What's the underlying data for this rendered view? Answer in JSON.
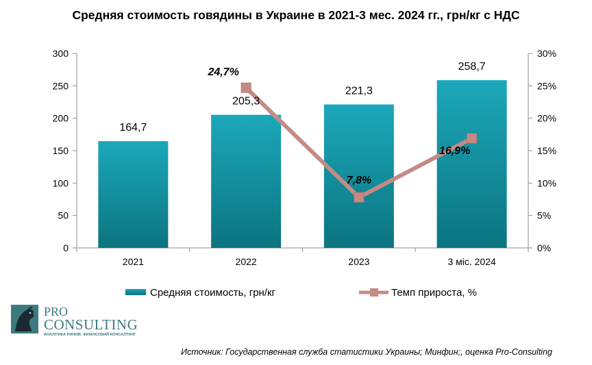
{
  "chart_data": {
    "type": "bar",
    "title": "Средняя стоимость говядины в Украине в 2021-3 мес. 2024 гг., грн/кг с НДС",
    "categories": [
      "2021",
      "2022",
      "2023",
      "3 міс. 2024"
    ],
    "series": [
      {
        "name": "Средняя стоимость, грн/кг",
        "type": "bar",
        "axis": "left",
        "color": "#1aa3b4",
        "values": [
          164.7,
          205.3,
          221.3,
          258.7
        ],
        "labels": [
          "164,7",
          "205,3",
          "221,3",
          "258,7"
        ]
      },
      {
        "name": "Темп прироста, %",
        "type": "line",
        "axis": "right",
        "color": "#c48b84",
        "values": [
          null,
          24.7,
          7.8,
          16.9
        ],
        "labels": [
          "",
          "24,7%",
          "7,8%",
          "16,9%"
        ]
      }
    ],
    "y_left": {
      "min": 0,
      "max": 300,
      "ticks": [
        0,
        50,
        100,
        150,
        200,
        250,
        300
      ],
      "tick_labels": [
        "0",
        "50",
        "100",
        "150",
        "200",
        "250",
        "300"
      ]
    },
    "y_right": {
      "min": 0,
      "max": 30,
      "ticks": [
        0,
        5,
        10,
        15,
        20,
        25,
        30
      ],
      "tick_labels": [
        "0%",
        "5%",
        "10%",
        "15%",
        "20%",
        "25%",
        "30%"
      ]
    },
    "grid": false,
    "legend": "bottom"
  },
  "logo": {
    "line1": "PRO",
    "line2": "CONSULTING",
    "tagline": "АНАЛІТИКА РИНКІВ. ФІНАНСОВИЙ КОНСАЛТИНГ"
  },
  "source": "Источник: Государственная служба статистики Украины; Минфин;, оценка Pro-Consulting"
}
